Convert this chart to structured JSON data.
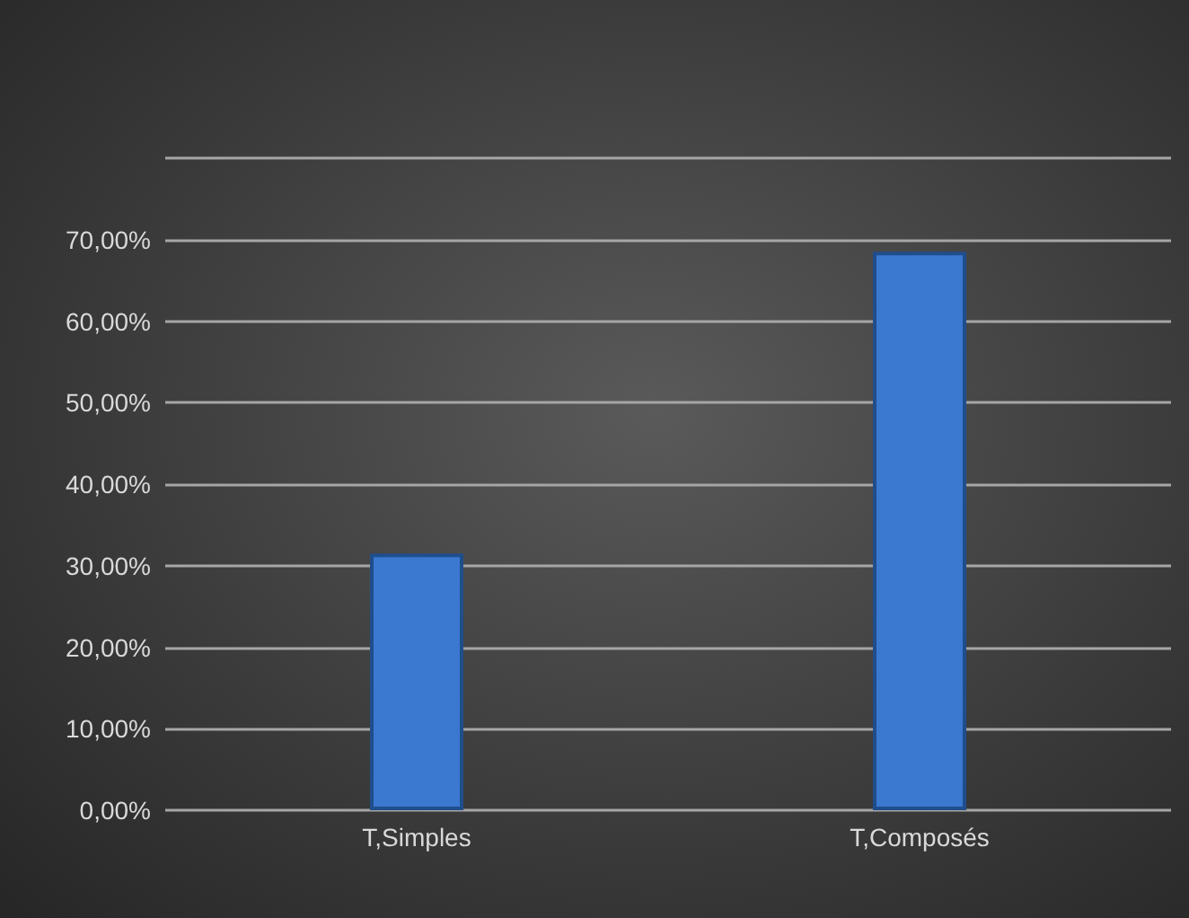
{
  "chart_data": {
    "type": "bar",
    "categories": [
      "T,Simples",
      "T,Composés"
    ],
    "values": [
      31.5,
      68.5
    ],
    "color": "#3b78d0",
    "ylim": [
      0,
      80
    ],
    "yticks": [
      {
        "value": 0,
        "label": "0,00%"
      },
      {
        "value": 10,
        "label": "10,00%"
      },
      {
        "value": 20,
        "label": "20,00%"
      },
      {
        "value": 30,
        "label": "30,00%"
      },
      {
        "value": 40,
        "label": "40,00%"
      },
      {
        "value": 50,
        "label": "50,00%"
      },
      {
        "value": 60,
        "label": "60,00%"
      },
      {
        "value": 70,
        "label": "70,00%"
      },
      {
        "value": 80,
        "label": null
      }
    ],
    "grid": true
  }
}
